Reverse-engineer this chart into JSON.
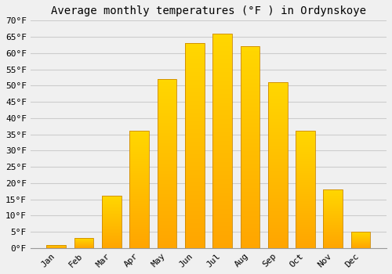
{
  "title": "Average monthly temperatures (°F ) in Ordynskoye",
  "months": [
    "Jan",
    "Feb",
    "Mar",
    "Apr",
    "May",
    "Jun",
    "Jul",
    "Aug",
    "Sep",
    "Oct",
    "Nov",
    "Dec"
  ],
  "values": [
    1,
    3,
    16,
    36,
    52,
    63,
    66,
    62,
    51,
    36,
    18,
    5
  ],
  "bar_color_bottom": "#FFA500",
  "bar_color_top": "#FFD700",
  "bar_edge_color": "#CC8800",
  "background_color": "#F0F0F0",
  "grid_color": "#CCCCCC",
  "ylim": [
    0,
    70
  ],
  "yticks": [
    0,
    5,
    10,
    15,
    20,
    25,
    30,
    35,
    40,
    45,
    50,
    55,
    60,
    65,
    70
  ],
  "title_fontsize": 10,
  "tick_fontsize": 8,
  "ylabel_suffix": "°F",
  "bar_width": 0.7
}
